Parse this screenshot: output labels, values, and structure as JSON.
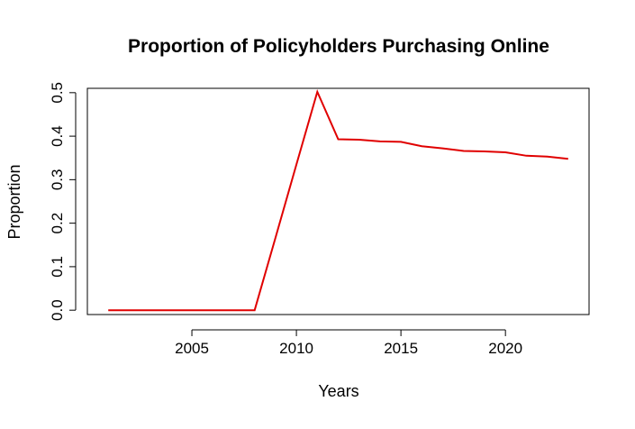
{
  "chart_data": {
    "type": "line",
    "title": "Proportion of Policyholders Purchasing Online",
    "xlabel": "Years",
    "ylabel": "Proportion",
    "xlim": [
      2000,
      2024
    ],
    "ylim": [
      -0.01,
      0.51
    ],
    "x_ticks": [
      2005,
      2010,
      2015,
      2020
    ],
    "y_ticks": [
      0.0,
      0.1,
      0.2,
      0.3,
      0.4,
      0.5
    ],
    "x_tick_labels": [
      "2005",
      "2010",
      "2015",
      "2020"
    ],
    "y_tick_labels": [
      "0.0",
      "0.1",
      "0.2",
      "0.3",
      "0.4",
      "0.5"
    ],
    "grid": false,
    "series": [
      {
        "color": "#e00000",
        "x": [
          2001,
          2002,
          2003,
          2004,
          2005,
          2006,
          2007,
          2008,
          2009,
          2010,
          2011,
          2012,
          2013,
          2014,
          2015,
          2016,
          2017,
          2018,
          2019,
          2020,
          2021,
          2022,
          2023
        ],
        "y": [
          0.0,
          0.0,
          0.0,
          0.0,
          0.0,
          0.0,
          0.0,
          0.0,
          0.167,
          0.335,
          0.502,
          0.393,
          0.392,
          0.388,
          0.387,
          0.377,
          0.372,
          0.366,
          0.365,
          0.363,
          0.355,
          0.353,
          0.348
        ]
      }
    ]
  }
}
